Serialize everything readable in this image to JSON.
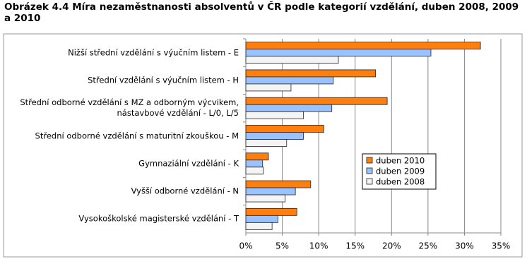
{
  "chart_data": {
    "type": "hbar",
    "title": "Obrázek 4.4 Míra nezaměstnanosti absolventů v ČR podle kategorií vzdělání, duben 2008, 2009 a 2010",
    "categories": [
      "Nižší střední vzdělání s výučním listem - E",
      "Střední vzdělání s výučním listem - H",
      "Střední odborné vzdělání s MZ a odborným výcvikem,\nnástavbové vzdělání - L/0, L/5",
      "Střední odborné vzdělání s maturitní zkouškou - M",
      "Gymnaziální vzdělání - K",
      "Vyšší odborné vzdělání - N",
      "Vysokoškolské magisterské vzdělání - T"
    ],
    "series": [
      {
        "name": "duben 2010",
        "color": "#ff7f0e",
        "values": [
          32.2,
          17.8,
          19.4,
          10.7,
          3.1,
          8.9,
          7.0
        ]
      },
      {
        "name": "duben 2009",
        "color": "#99c2ff",
        "values": [
          25.4,
          12.0,
          11.8,
          7.9,
          2.3,
          6.8,
          4.4
        ]
      },
      {
        "name": "duben 2008",
        "color": "#f4f4f4",
        "values": [
          12.7,
          6.2,
          7.9,
          5.6,
          2.4,
          5.4,
          3.6
        ]
      }
    ],
    "xlim": [
      0,
      35
    ],
    "xticks": [
      {
        "value": 0,
        "label": "0%"
      },
      {
        "value": 5,
        "label": "5%"
      },
      {
        "value": 10,
        "label": "10%"
      },
      {
        "value": 15,
        "label": "15%"
      },
      {
        "value": 20,
        "label": "20%"
      },
      {
        "value": 25,
        "label": "25%"
      },
      {
        "value": 30,
        "label": "30%"
      },
      {
        "value": 35,
        "label": "35%"
      }
    ],
    "grid": true,
    "legend": "right"
  }
}
